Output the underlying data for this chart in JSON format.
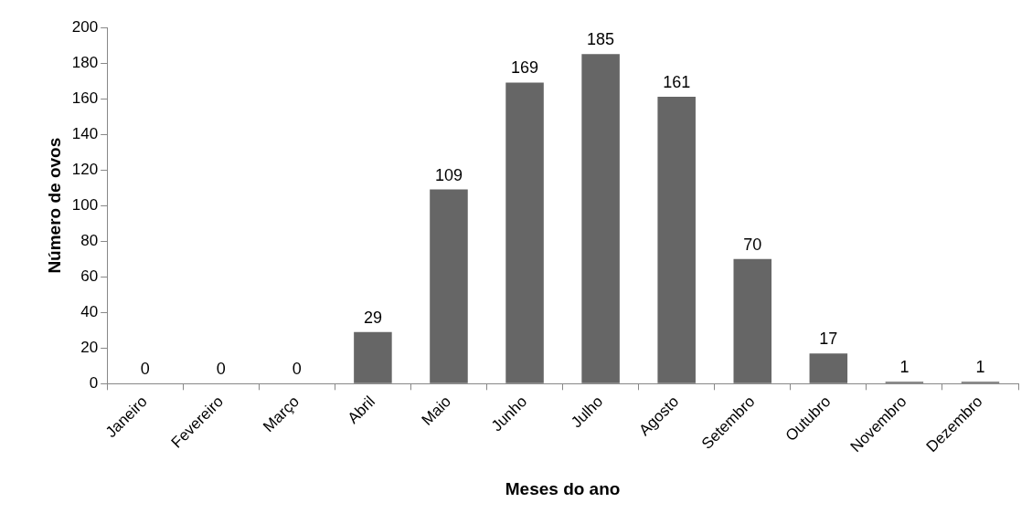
{
  "chart_data": {
    "type": "bar",
    "xlabel": "Meses do ano",
    "ylabel": "Número de ovos",
    "categories": [
      "Janeiro",
      "Fevereiro",
      "Março",
      "Abril",
      "Maio",
      "Junho",
      "Julho",
      "Agosto",
      "Setembro",
      "Outubro",
      "Novembro",
      "Dezembro"
    ],
    "values": [
      0,
      0,
      0,
      29,
      109,
      169,
      185,
      161,
      70,
      17,
      1,
      1
    ],
    "color": "#666666",
    "ylim": [
      0,
      200
    ],
    "yticks": [
      0,
      20,
      40,
      60,
      80,
      100,
      120,
      140,
      160,
      180,
      200
    ],
    "grid": false,
    "legend": false,
    "data_labels": true
  }
}
